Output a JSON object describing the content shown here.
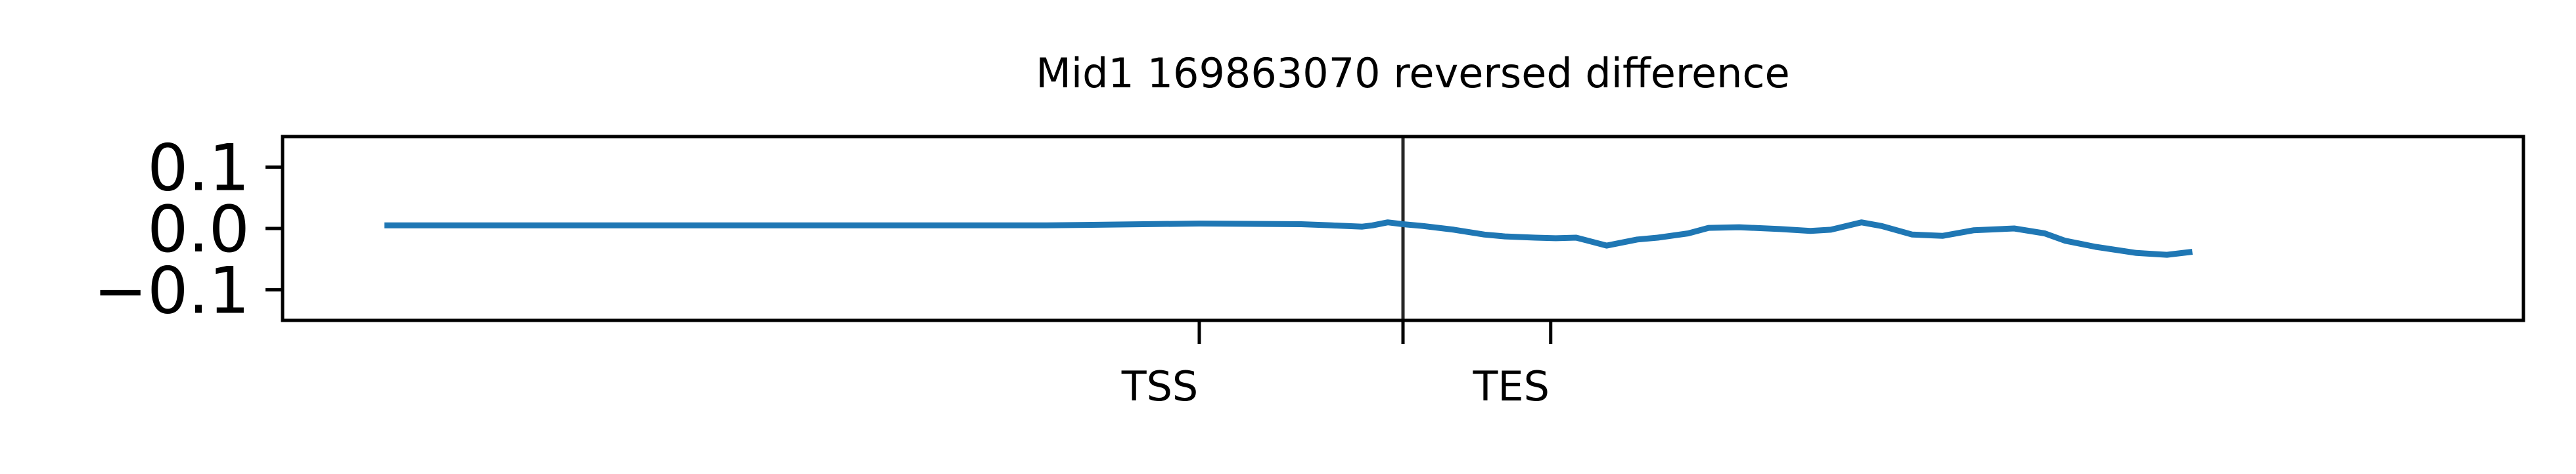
{
  "chart_data": {
    "type": "line",
    "title": "Mid1 169863070 reversed difference",
    "xlabel": "",
    "ylabel": "",
    "ylim": [
      -0.15,
      0.15
    ],
    "yticks": [
      {
        "value": 0.1,
        "label": "0.1"
      },
      {
        "value": 0.0,
        "label": "0.0"
      },
      {
        "value": -0.1,
        "label": "−0.1"
      }
    ],
    "xlim": [
      -1100,
      1100
    ],
    "xticks": [
      {
        "value": -200,
        "label": "TSS"
      },
      {
        "value": 145,
        "label": "TES"
      }
    ],
    "vline": 0,
    "grid": false,
    "series": [
      {
        "color": "#1f77b4",
        "x": [
          -1000,
          -700,
          -350,
          -200,
          -100,
          -70,
          -55,
          -40,
          -30,
          -15,
          0,
          20,
          50,
          80,
          100,
          130,
          150,
          170,
          200,
          230,
          250,
          280,
          300,
          330,
          370,
          400,
          420,
          450,
          470,
          500,
          530,
          560,
          600,
          630,
          650,
          680,
          720,
          750,
          775
        ],
        "y": [
          0.005,
          0.005,
          0.005,
          0.008,
          0.007,
          0.005,
          0.004,
          0.003,
          0.005,
          0.01,
          0.007,
          0.004,
          -0.002,
          -0.01,
          -0.013,
          -0.015,
          -0.016,
          -0.015,
          -0.028,
          -0.018,
          -0.015,
          -0.008,
          0.001,
          0.002,
          -0.001,
          -0.004,
          -0.002,
          0.01,
          0.004,
          -0.01,
          -0.012,
          -0.003,
          0.0,
          -0.008,
          -0.02,
          -0.03,
          -0.04,
          -0.043,
          -0.038
        ]
      }
    ]
  }
}
